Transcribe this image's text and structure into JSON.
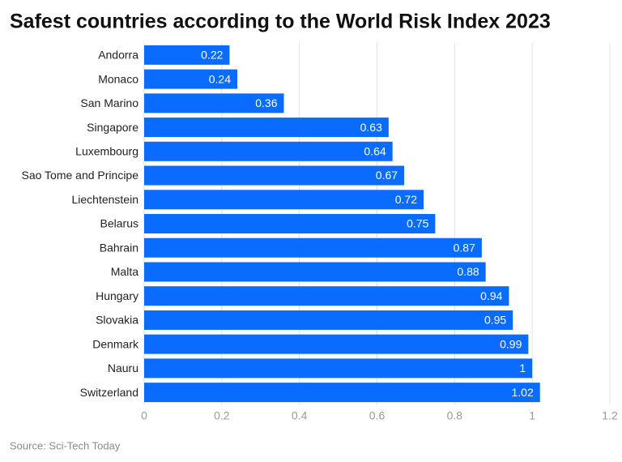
{
  "chart_data": {
    "type": "hbar",
    "title": "Safest countries according to the World Risk Index 2023",
    "source": "Source: Sci-Tech Today",
    "categories": [
      "Andorra",
      "Monaco",
      "San Marino",
      "Singapore",
      "Luxembourg",
      "Sao Tome and Principe",
      "Liechtenstein",
      "Belarus",
      "Bahrain",
      "Malta",
      "Hungary",
      "Slovakia",
      "Denmark",
      "Nauru",
      "Switzerland"
    ],
    "values": [
      0.22,
      0.24,
      0.36,
      0.63,
      0.64,
      0.67,
      0.72,
      0.75,
      0.87,
      0.88,
      0.94,
      0.95,
      0.99,
      1,
      1.02
    ],
    "color": "#0a6cff",
    "xlim": [
      0,
      1.2
    ],
    "xticks": [
      0,
      0.2,
      0.4,
      0.6,
      0.8,
      1,
      1.2
    ],
    "grid": true
  }
}
